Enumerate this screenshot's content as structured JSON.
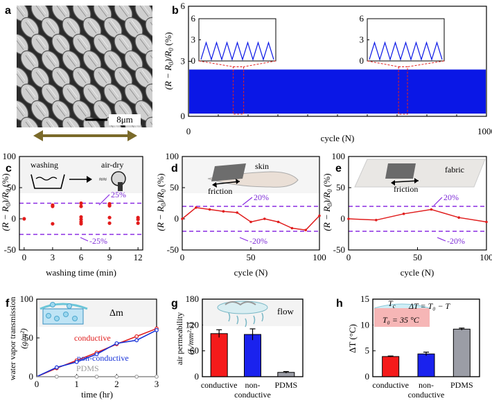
{
  "chart_data": [
    {
      "panel": "a",
      "type": "other",
      "scale_bar_label": "8μm"
    },
    {
      "panel": "b",
      "type": "line",
      "xlabel": "cycle (N)",
      "ylabel": "(R − R₀)/R₀  (%)",
      "xlim": [
        0,
        1000
      ],
      "ylim": [
        0,
        6
      ],
      "x_ticks": [
        "0",
        "1000"
      ],
      "y_ticks": [
        "0",
        "3",
        "6"
      ],
      "band": {
        "min": 0.15,
        "max": 2.55
      },
      "color": "#0a17e6",
      "insets": [
        {
          "window_cycles": [
            150,
            185
          ],
          "ylim": [
            0,
            6
          ],
          "y_ticks": [
            "0",
            "3",
            "6"
          ],
          "periods": 7,
          "min": 0.2,
          "max": 2.6
        },
        {
          "window_cycles": [
            705,
            735
          ],
          "ylim": [
            0,
            6
          ],
          "y_ticks": [
            "0",
            "3",
            "6"
          ],
          "periods": 7,
          "min": 0.2,
          "max": 2.6
        }
      ]
    },
    {
      "panel": "c",
      "type": "scatter",
      "xlabel": "washing time (min)",
      "ylabel": "(R − R₀)/R₀  (%)",
      "xlim": [
        -0.5,
        12.5
      ],
      "ylim": [
        -50,
        100
      ],
      "x_ticks": [
        "0",
        "3",
        "6",
        "9",
        "12"
      ],
      "y_ticks": [
        "-50",
        "0",
        "50",
        "100"
      ],
      "bounds": [
        25,
        -25
      ],
      "bound_labels": [
        "25%",
        "-25%"
      ],
      "inset_labels": [
        "washing",
        "air-dry"
      ],
      "points": [
        {
          "x": 0,
          "y": 0
        },
        {
          "x": 3,
          "y": 22
        },
        {
          "x": 3,
          "y": 20
        },
        {
          "x": 3,
          "y": -8
        },
        {
          "x": 6,
          "y": 25
        },
        {
          "x": 6,
          "y": 20
        },
        {
          "x": 6,
          "y": 3
        },
        {
          "x": 6,
          "y": -1
        },
        {
          "x": 6,
          "y": -5
        },
        {
          "x": 6,
          "y": -8
        },
        {
          "x": 9,
          "y": 24
        },
        {
          "x": 9,
          "y": 21
        },
        {
          "x": 9,
          "y": 2
        },
        {
          "x": 9,
          "y": -7
        },
        {
          "x": 12,
          "y": 2
        },
        {
          "x": 12,
          "y": -1
        },
        {
          "x": 12,
          "y": -7
        }
      ]
    },
    {
      "panel": "d",
      "type": "line",
      "xlabel": "cycle (N)",
      "ylabel": "(R − R₀)/R₀  (%)",
      "xlim": [
        0,
        100
      ],
      "ylim": [
        -50,
        100
      ],
      "x_ticks": [
        "0",
        "50",
        "100"
      ],
      "y_ticks": [
        "-50",
        "0",
        "50",
        "100"
      ],
      "bounds": [
        20,
        -20
      ],
      "bound_labels": [
        "20%",
        "-20%"
      ],
      "inset_labels": [
        "skin",
        "friction"
      ],
      "x": [
        0,
        10,
        20,
        30,
        40,
        50,
        60,
        70,
        80,
        90,
        100
      ],
      "y": [
        0,
        18,
        15,
        12,
        10,
        -5,
        0,
        -5,
        -15,
        -18,
        5
      ]
    },
    {
      "panel": "e",
      "type": "line",
      "xlabel": "cycle (N)",
      "ylabel": "(R − R₀)/R₀  (%)",
      "xlim": [
        0,
        100
      ],
      "ylim": [
        -50,
        100
      ],
      "x_ticks": [
        "0",
        "50",
        "100"
      ],
      "y_ticks": [
        "-50",
        "0",
        "50",
        "100"
      ],
      "bounds": [
        20,
        -20
      ],
      "bound_labels": [
        "20%",
        "-20%"
      ],
      "inset_labels": [
        "fabric",
        "friction"
      ],
      "x": [
        0,
        20,
        40,
        60,
        80,
        100
      ],
      "y": [
        0,
        -2,
        8,
        15,
        2,
        -5
      ]
    },
    {
      "panel": "f",
      "type": "line",
      "xlabel": "time (hr)",
      "ylabel": "water vapor transmission (g/m²)",
      "xlim": [
        0,
        3
      ],
      "ylim": [
        0,
        100
      ],
      "x_ticks": [
        "0",
        "1",
        "2",
        "3"
      ],
      "y_ticks": [
        "0",
        "50",
        "100"
      ],
      "inset_label": "Δm",
      "series": [
        {
          "name": "conductive",
          "color": "#e01d1d",
          "x": [
            0,
            0.5,
            1,
            1.5,
            2,
            2.5,
            3
          ],
          "y": [
            0,
            11,
            21,
            31,
            42,
            52,
            62
          ]
        },
        {
          "name": "non-conductive",
          "color": "#1530d8",
          "x": [
            0,
            0.5,
            1,
            1.5,
            2,
            2.5,
            3
          ],
          "y": [
            0,
            12,
            19,
            29,
            43,
            47,
            60
          ]
        },
        {
          "name": "PDMS",
          "color": "#9c9c9c",
          "x": [
            0,
            0.5,
            1,
            1.5,
            2,
            2.5,
            3
          ],
          "y": [
            0,
            0,
            0,
            0,
            0,
            0,
            0
          ]
        }
      ]
    },
    {
      "panel": "g",
      "type": "bar",
      "ylabel": "air permeability (L/mm²·s)",
      "ylim": [
        0,
        180
      ],
      "y_ticks": [
        "0",
        "60",
        "120",
        "180"
      ],
      "inset_label": "flow",
      "categories": [
        "conductive",
        "non-conductive",
        "PDMS"
      ],
      "category_lines": [
        [
          "conductive"
        ],
        [
          "non-",
          "conductive"
        ],
        [
          "PDMS"
        ]
      ],
      "values": [
        100,
        98,
        10
      ],
      "errors": [
        9,
        13,
        2
      ],
      "colors": [
        "#f51b1b",
        "#1a22ee",
        "#9b9da6"
      ]
    },
    {
      "panel": "h",
      "type": "bar",
      "ylabel": "ΔT (°C)",
      "ylim": [
        0,
        15
      ],
      "y_ticks": [
        "0",
        "5",
        "10",
        "15"
      ],
      "inset_labels": [
        "T",
        "ΔT = T₀ − T",
        "T₀ = 35 °C"
      ],
      "categories": [
        "conductive",
        "non-conductive",
        "PDMS"
      ],
      "category_lines": [
        [
          "conductive"
        ],
        [
          "non-",
          "conductive"
        ],
        [
          "PDMS"
        ]
      ],
      "values": [
        3.9,
        4.4,
        9.2
      ],
      "errors": [
        0.1,
        0.35,
        0.2
      ],
      "colors": [
        "#f51b1b",
        "#1a22ee",
        "#9b9da6"
      ]
    }
  ]
}
